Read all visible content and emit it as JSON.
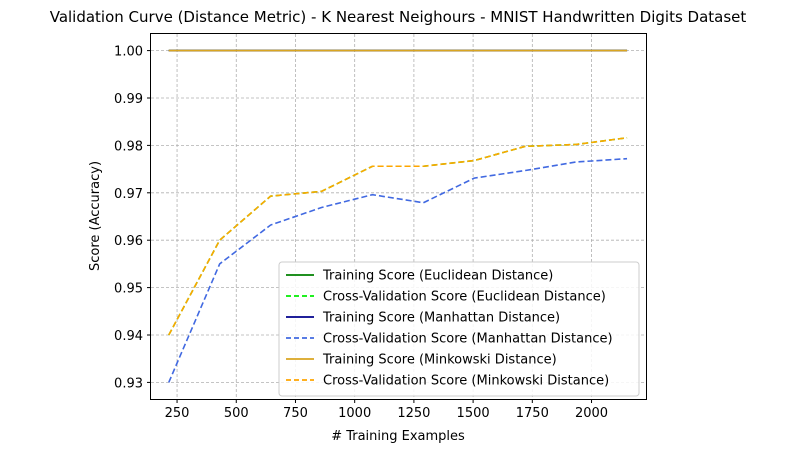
{
  "chart_data": {
    "type": "line",
    "title": "Validation Curve (Distance Metric) - K Nearest Neighours - MNIST Handwritten Digits Dataset",
    "xlabel": "# Training Examples",
    "ylabel": "Score (Accuracy)",
    "xlim": [
      140,
      2230
    ],
    "ylim": [
      0.9265,
      1.0035
    ],
    "xticks": [
      250,
      500,
      750,
      1000,
      1250,
      1500,
      1750,
      2000
    ],
    "xtick_labels": [
      "250",
      "500",
      "750",
      "1000",
      "1250",
      "1500",
      "1750",
      "2000"
    ],
    "yticks": [
      0.93,
      0.94,
      0.95,
      0.96,
      0.97,
      0.98,
      0.99,
      1.0
    ],
    "ytick_labels": [
      "0.93",
      "0.94",
      "0.95",
      "0.96",
      "0.97",
      "0.98",
      "0.99",
      "1.00"
    ],
    "grid": true,
    "legend_position": "lower-right",
    "x": [
      215,
      430,
      645,
      860,
      1075,
      1290,
      1505,
      1720,
      1935,
      2150
    ],
    "series": [
      {
        "name": "Training Score (Euclidean Distance)",
        "color": "#008000",
        "dash": false,
        "values": [
          1.0,
          1.0,
          1.0,
          1.0,
          1.0,
          1.0,
          1.0,
          1.0,
          1.0,
          1.0
        ]
      },
      {
        "name": "Cross-Validation Score (Euclidean Distance)",
        "color": "#00ee00",
        "dash": true,
        "values": [
          0.94,
          0.96,
          0.9693,
          0.9703,
          0.9756,
          0.9756,
          0.9768,
          0.9798,
          0.9802,
          0.9816
        ]
      },
      {
        "name": "Training Score (Manhattan Distance)",
        "color": "#00008b",
        "dash": false,
        "values": [
          1.0,
          1.0,
          1.0,
          1.0,
          1.0,
          1.0,
          1.0,
          1.0,
          1.0,
          1.0
        ]
      },
      {
        "name": "Cross-Validation Score (Manhattan Distance)",
        "color": "#4169e1",
        "dash": true,
        "values": [
          0.93,
          0.955,
          0.9632,
          0.9669,
          0.9696,
          0.9679,
          0.9731,
          0.9747,
          0.9765,
          0.9772
        ]
      },
      {
        "name": "Training Score (Minkowski Distance)",
        "color": "#daa520",
        "dash": false,
        "values": [
          1.0,
          1.0,
          1.0,
          1.0,
          1.0,
          1.0,
          1.0,
          1.0,
          1.0,
          1.0
        ]
      },
      {
        "name": "Cross-Validation Score (Minkowski Distance)",
        "color": "#ffa500",
        "dash": true,
        "values": [
          0.94,
          0.96,
          0.9693,
          0.9703,
          0.9756,
          0.9756,
          0.9768,
          0.9798,
          0.9802,
          0.9816
        ]
      }
    ]
  }
}
